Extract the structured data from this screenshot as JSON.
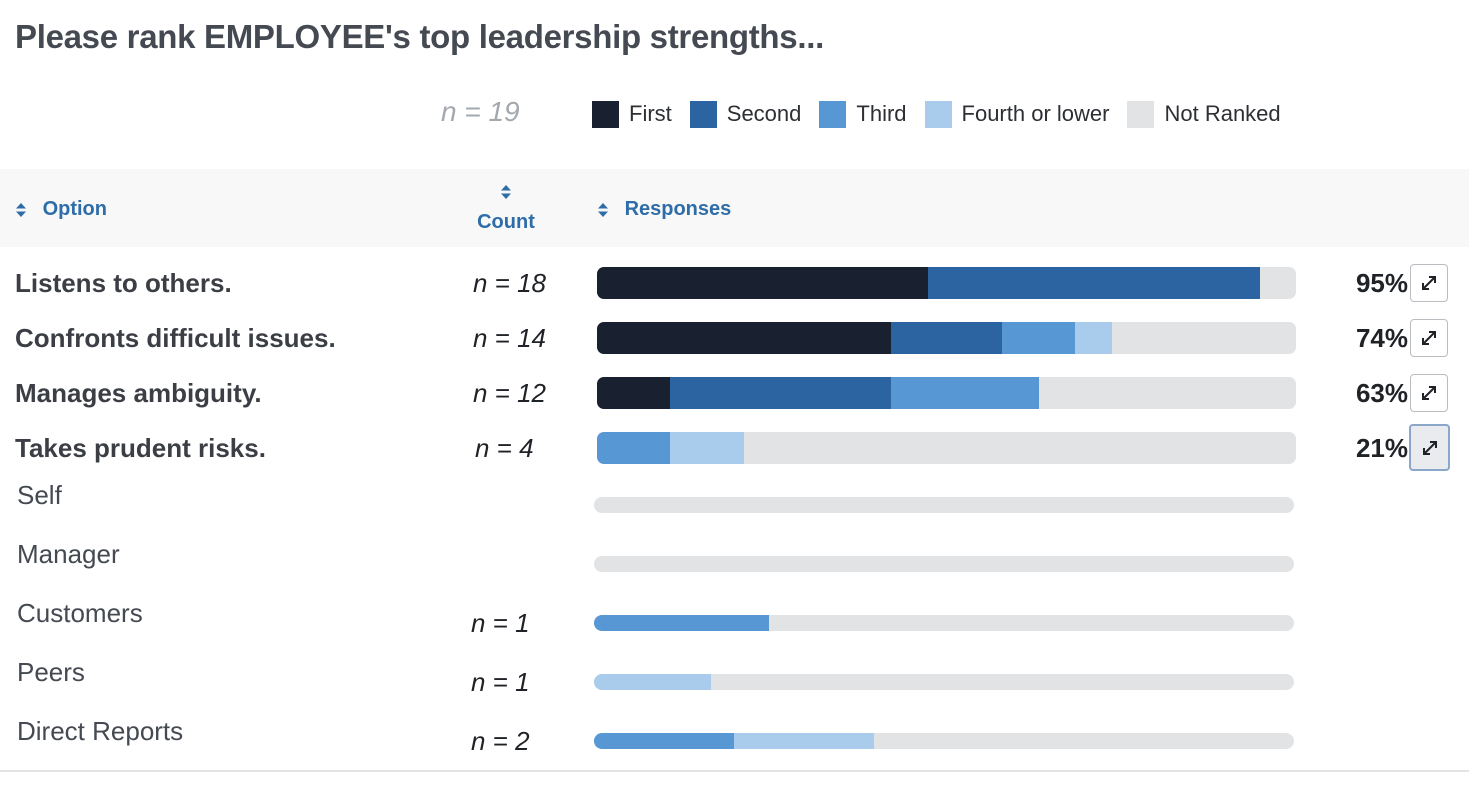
{
  "title": "Please rank EMPLOYEE's top leadership strengths...",
  "total_n": "n = 19",
  "colors": {
    "first": "#19202f",
    "second": "#2b64a0",
    "third": "#5797d3",
    "fourth": "#aaccec",
    "not_ranked": "#e2e3e5",
    "header_text": "#2e6da8"
  },
  "legend": [
    {
      "label": "First",
      "color": "#19202f"
    },
    {
      "label": "Second",
      "color": "#2b64a0"
    },
    {
      "label": "Third",
      "color": "#5797d3"
    },
    {
      "label": "Fourth or lower",
      "color": "#aaccec"
    },
    {
      "label": "Not Ranked",
      "color": "#e2e3e5"
    }
  ],
  "table": {
    "columns": {
      "option": "Option",
      "count": "Count",
      "responses": "Responses"
    },
    "rows": [
      {
        "label": "Listens to others.",
        "count": "n = 18",
        "percent": "95%",
        "fractions": [
          0.474,
          0.474,
          0,
          0
        ]
      },
      {
        "label": "Confronts difficult issues.",
        "count": "n = 14",
        "percent": "74%",
        "fractions": [
          0.421,
          0.158,
          0.105,
          0.053
        ]
      },
      {
        "label": "Manages ambiguity.",
        "count": "n = 12",
        "percent": "63%",
        "fractions": [
          0.105,
          0.316,
          0.211,
          0
        ]
      },
      {
        "label": "Takes prudent risks.",
        "count": "n = 4",
        "percent": "21%",
        "fractions": [
          0,
          0,
          0.105,
          0.105
        ]
      }
    ],
    "breakdown": [
      {
        "label": "Self",
        "count": "",
        "fractions": [
          0,
          0,
          0,
          0
        ]
      },
      {
        "label": "Manager",
        "count": "",
        "fractions": [
          0,
          0,
          0,
          0
        ]
      },
      {
        "label": "Customers",
        "count": "n = 1",
        "fractions": [
          0,
          0,
          0.25,
          0
        ]
      },
      {
        "label": "Peers",
        "count": "n = 1",
        "fractions": [
          0,
          0,
          0,
          0.167
        ]
      },
      {
        "label": "Direct Reports",
        "count": "n = 2",
        "fractions": [
          0,
          0,
          0.2,
          0.2
        ]
      }
    ]
  }
}
